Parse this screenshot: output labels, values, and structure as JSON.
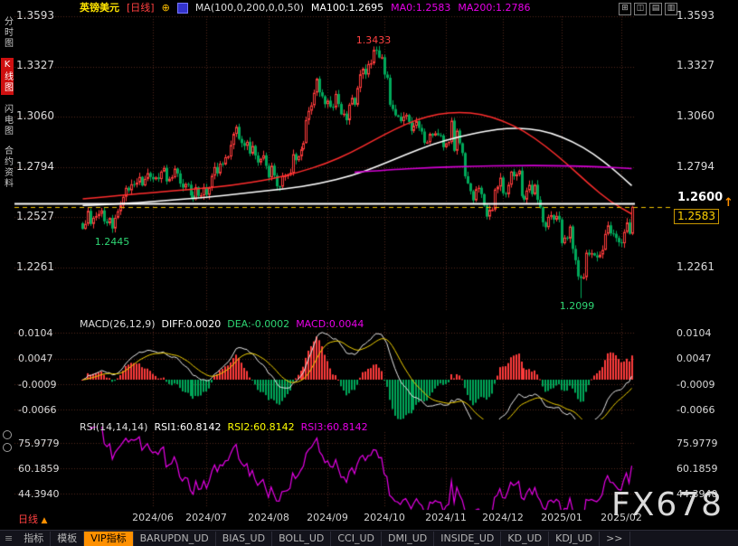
{
  "header": {
    "symbol": "英镑美元",
    "period_tag": "[日线]",
    "overlay_add_glyph": "⊕",
    "ma_settings": "MA(100,0,200,0,0,50)",
    "ma100_label": "MA100:1.2695",
    "ma0_label": "MA0:1.2583",
    "ma200_label": "MA200:1.2786"
  },
  "window_controls": [
    "⊞",
    "◫",
    "▤",
    "▥"
  ],
  "sidebar": {
    "items": [
      {
        "label": "分时图",
        "active": false
      },
      {
        "label": "K线图",
        "active": true
      },
      {
        "label": "闪电图",
        "active": false
      },
      {
        "label": "合约资料",
        "active": false
      }
    ]
  },
  "main_chart": {
    "y_labels": [
      "1.3593",
      "1.3327",
      "1.3060",
      "1.2794",
      "1.2527",
      "1.2261"
    ],
    "annotations": {
      "high": "1.3433",
      "low_start": "1.2445",
      "low_mid": "1.2099"
    },
    "price_line_label": "1.2600",
    "current_price_label": "1.2583",
    "latest_arrow_glyph": "↑"
  },
  "macd": {
    "params": "MACD(26,12,9)",
    "diff_label": "DIFF:0.0020",
    "dea_label": "DEA:-0.0002",
    "macd_label": "MACD:0.0044",
    "y_labels": [
      "0.0104",
      "0.0047",
      "-0.0009",
      "-0.0066"
    ]
  },
  "rsi": {
    "params": "RSI(14,14,14)",
    "rsi1_label": "RSI1:60.8142",
    "rsi2_label": "RSI2:60.8142",
    "rsi3_label": "RSI3:60.8142",
    "y_labels": [
      "75.9779",
      "60.1859",
      "44.3940"
    ]
  },
  "x_labels": [
    "2024/06",
    "2024/07",
    "2024/08",
    "2024/09",
    "2024/10",
    "2024/11",
    "2024/12",
    "2025/01",
    "2025/02"
  ],
  "footer": {
    "period_label": "日线",
    "arrow_glyph": "▲"
  },
  "watermark": "FX678",
  "toolbar": {
    "menu_glyph": "≡",
    "items": [
      "指标",
      "模板"
    ],
    "vip_label": "VIP指标",
    "indicator_tabs": [
      "BARUPDN_UD",
      "BIAS_UD",
      "BOLL_UD",
      "CCI_UD",
      "DMI_UD",
      "INSIDE_UD",
      "KD_UD",
      "KDJ_UD"
    ],
    "more_label": ">>"
  },
  "colors": {
    "background": "#000000",
    "up": "#ff3b3b",
    "down": "#00a85a",
    "grid": "#50261d",
    "ma100": "#ffffff",
    "ma50": "#ff2d2d",
    "ma200": "#d400d4",
    "diff_line": "#e8e8e8",
    "dea_line": "#f0d000",
    "rsi_line": "#e800e8",
    "price_line": "#ffffff",
    "current_dash": "#f5c400",
    "accent_orange": "#ff9000",
    "symbol_yellow": "#ffe400",
    "tag_red": "#ff4040"
  },
  "chart_data": {
    "type": "candlestick",
    "symbol": "英镑美元 (GBP/USD)",
    "timeframe": "daily",
    "y_axis": {
      "max": 1.3593,
      "min": 1.2261,
      "labels": [
        1.3593,
        1.3327,
        1.306,
        1.2794,
        1.2527,
        1.2261
      ]
    },
    "x_ticks": {
      "labels": [
        "2024/06",
        "2024/07",
        "2024/08",
        "2024/09",
        "2024/10",
        "2024/11",
        "2024/12",
        "2025/01",
        "2025/02"
      ],
      "indices": [
        26,
        46,
        69,
        91,
        112,
        135,
        156,
        178,
        200
      ]
    },
    "closes": [
      1.2466,
      1.2493,
      1.2562,
      1.2492,
      1.2525,
      1.2534,
      1.2546,
      1.2564,
      1.2506,
      1.2496,
      1.2524,
      1.2468,
      1.2525,
      1.2559,
      1.2591,
      1.2636,
      1.2684,
      1.267,
      1.2703,
      1.27,
      1.2712,
      1.2742,
      1.2696,
      1.2731,
      1.2762,
      1.2741,
      1.2729,
      1.2739,
      1.273,
      1.277,
      1.279,
      1.2718,
      1.2732,
      1.274,
      1.2786,
      1.276,
      1.2706,
      1.2685,
      1.2704,
      1.27,
      1.2643,
      1.2622,
      1.2687,
      1.2641,
      1.2644,
      1.2686,
      1.2646,
      1.2685,
      1.2748,
      1.2794,
      1.276,
      1.2812,
      1.2808,
      1.2846,
      1.285,
      1.2911,
      1.297,
      1.3007,
      1.2943,
      1.2921,
      1.2906,
      1.2928,
      1.2865,
      1.2906,
      1.2855,
      1.2818,
      1.2838,
      1.2856,
      1.28,
      1.2739,
      1.2801,
      1.2749,
      1.2692,
      1.269,
      1.2745,
      1.2748,
      1.2752,
      1.2764,
      1.2862,
      1.283,
      1.2851,
      1.2888,
      1.2921,
      1.3043,
      1.3092,
      1.3121,
      1.3188,
      1.3262,
      1.319,
      1.3169,
      1.3127,
      1.3146,
      1.3113,
      1.311,
      1.3181,
      1.3128,
      1.3073,
      1.3077,
      1.3042,
      1.3125,
      1.3161,
      1.3124,
      1.3213,
      1.3286,
      1.3315,
      1.3284,
      1.334,
      1.3344,
      1.3415,
      1.3412,
      1.3374,
      1.3376,
      1.3284,
      1.3267,
      1.3124,
      1.3101,
      1.3068,
      1.3061,
      1.3037,
      1.3062,
      1.307,
      1.3033,
      1.2985,
      1.3013,
      1.3037,
      1.3001,
      1.2982,
      1.2922,
      1.2925,
      1.297,
      1.2961,
      1.2973,
      1.2963,
      1.2961,
      1.2899,
      1.292,
      1.2927,
      1.304,
      1.288,
      1.2987,
      1.292,
      1.2868,
      1.2745,
      1.2707,
      1.2666,
      1.2617,
      1.2677,
      1.2684,
      1.265,
      1.259,
      1.2531,
      1.2567,
      1.2568,
      1.2675,
      1.269,
      1.2738,
      1.2655,
      1.265,
      1.27,
      1.277,
      1.2745,
      1.2755,
      1.2775,
      1.264,
      1.2621,
      1.267,
      1.27,
      1.265,
      1.27,
      1.262,
      1.258,
      1.2501,
      1.2475,
      1.253,
      1.2539,
      1.2515,
      1.2535,
      1.2516,
      1.239,
      1.242,
      1.2415,
      1.2479,
      1.236,
      1.23,
      1.2214,
      1.2206,
      1.221,
      1.234,
      1.233,
      1.2337,
      1.2325,
      1.2315,
      1.233,
      1.2355,
      1.244,
      1.2485,
      1.2442,
      1.244,
      1.2418,
      1.2395,
      1.239,
      1.245,
      1.25,
      1.244,
      1.2583
    ],
    "extremes": [
      {
        "index": 11,
        "kind": "low",
        "price": 1.2445
      },
      {
        "index": 108,
        "kind": "high",
        "price": 1.3433
      },
      {
        "index": 185,
        "kind": "low",
        "price": 1.2099
      }
    ],
    "price_line": 1.26,
    "current_price": 1.2583,
    "ma_lines": [
      {
        "name": "MA100",
        "color": "#ffffff",
        "width": 1.5,
        "points": [
          [
            0,
            1.259
          ],
          [
            15,
            1.26
          ],
          [
            30,
            1.2615
          ],
          [
            45,
            1.2632
          ],
          [
            60,
            1.2655
          ],
          [
            75,
            1.2678
          ],
          [
            88,
            1.2705
          ],
          [
            100,
            1.2748
          ],
          [
            110,
            1.28
          ],
          [
            120,
            1.286
          ],
          [
            130,
            1.2915
          ],
          [
            140,
            1.2955
          ],
          [
            150,
            1.2985
          ],
          [
            158,
            1.3
          ],
          [
            166,
            1.2998
          ],
          [
            174,
            1.2975
          ],
          [
            182,
            1.293
          ],
          [
            190,
            1.2862
          ],
          [
            197,
            1.2785
          ],
          [
            204,
            1.2695
          ]
        ]
      },
      {
        "name": "MA50",
        "color": "#ff2d2d",
        "width": 1.5,
        "points": [
          [
            0,
            1.2625
          ],
          [
            20,
            1.2652
          ],
          [
            40,
            1.2675
          ],
          [
            55,
            1.2695
          ],
          [
            70,
            1.273
          ],
          [
            80,
            1.2765
          ],
          [
            90,
            1.281
          ],
          [
            100,
            1.2872
          ],
          [
            108,
            1.2935
          ],
          [
            116,
            1.2995
          ],
          [
            124,
            1.3045
          ],
          [
            132,
            1.3075
          ],
          [
            140,
            1.3085
          ],
          [
            148,
            1.3075
          ],
          [
            156,
            1.304
          ],
          [
            164,
            1.2985
          ],
          [
            172,
            1.2905
          ],
          [
            180,
            1.281
          ],
          [
            188,
            1.2705
          ],
          [
            196,
            1.261
          ],
          [
            204,
            1.2545
          ]
        ]
      },
      {
        "name": "MA200",
        "color": "#d400d4",
        "width": 1.6,
        "points": [
          [
            101,
            1.2766
          ],
          [
            115,
            1.278
          ],
          [
            130,
            1.2791
          ],
          [
            145,
            1.2798
          ],
          [
            160,
            1.2802
          ],
          [
            175,
            1.2802
          ],
          [
            188,
            1.2797
          ],
          [
            196,
            1.2792
          ],
          [
            204,
            1.2786
          ]
        ]
      }
    ],
    "macd_axis": {
      "max": 0.0104,
      "min": -0.0066
    },
    "macd_final": {
      "diff": 0.002,
      "dea": -0.0002,
      "macd": 0.0044
    },
    "rsi_axis": {
      "max": 75.9779,
      "min": 44.394
    },
    "rsi_final": 60.8142
  }
}
